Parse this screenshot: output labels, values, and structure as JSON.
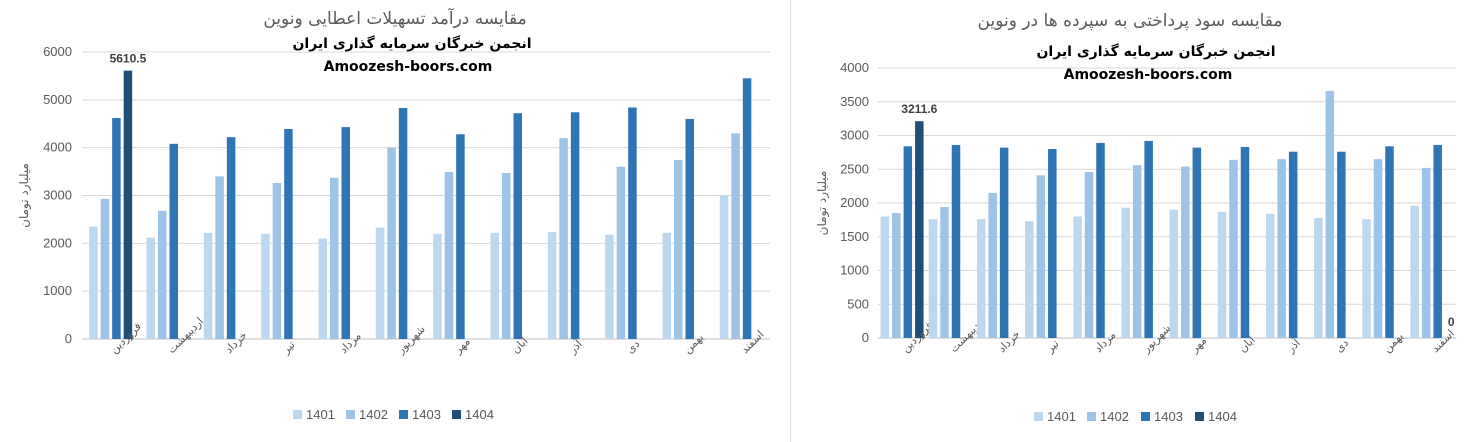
{
  "chart_data": [
    {
      "type": "bar",
      "title": "مقایسه درآمد تسهیلات اعطایی  ونوین",
      "watermark_line1": "انجمن خبرگان سرمایه گذاری ایران",
      "watermark_line2": "Amoozesh-boors.com",
      "ylabel": "میلیارد تومان",
      "ylim": [
        0,
        6000
      ],
      "yticks": [
        0,
        1000,
        2000,
        3000,
        4000,
        5000,
        6000
      ],
      "grid": true,
      "legend_position": "bottom",
      "categories": [
        "فروردین",
        "اردیبهشت",
        "خرداد",
        "تیر",
        "مرداد",
        "شهریور",
        "مهر",
        "آبان",
        "آذر",
        "دی",
        "بهمن",
        "اسفند"
      ],
      "series": [
        {
          "name": "1401",
          "color": "#bdd7ee",
          "values": [
            2350,
            2120,
            2220,
            2200,
            2100,
            2330,
            2200,
            2220,
            2240,
            2180,
            2220,
            3000
          ]
        },
        {
          "name": "1402",
          "color": "#9dc3e6",
          "values": [
            2930,
            2680,
            3400,
            3260,
            3370,
            4000,
            3490,
            3470,
            4200,
            3600,
            3740,
            4300
          ]
        },
        {
          "name": "1403",
          "color": "#2e75b6",
          "values": [
            4620,
            4080,
            4220,
            4390,
            4430,
            4830,
            4280,
            4720,
            4740,
            4840,
            4600,
            5450
          ]
        },
        {
          "name": "1404",
          "color": "#1f4e79",
          "values": [
            5610.5,
            null,
            null,
            null,
            null,
            null,
            null,
            null,
            null,
            null,
            null,
            null
          ]
        }
      ],
      "data_labels": [
        {
          "series": "1404",
          "category": "فروردین",
          "text": "5610.5"
        }
      ]
    },
    {
      "type": "bar",
      "title": "مقایسه سود پرداختی به سپرده ها در ونوین",
      "watermark_line1": "انجمن خبرگان سرمایه گذاری ایران",
      "watermark_line2": "Amoozesh-boors.com",
      "ylabel": "میلیارد تومان",
      "ylim": [
        0,
        4000
      ],
      "yticks": [
        0,
        500,
        1000,
        1500,
        2000,
        2500,
        3000,
        3500,
        4000
      ],
      "grid": true,
      "legend_position": "bottom",
      "categories": [
        "فروردین",
        "اردیبهشت",
        "خرداد",
        "تیر",
        "مرداد",
        "شهریور",
        "مهر",
        "آبان",
        "آذر",
        "دی",
        "بهمن",
        "اسفند"
      ],
      "series": [
        {
          "name": "1401",
          "color": "#bdd7ee",
          "values": [
            1800,
            1760,
            1760,
            1730,
            1800,
            1930,
            1900,
            1870,
            1840,
            1780,
            1760,
            1960
          ]
        },
        {
          "name": "1402",
          "color": "#9dc3e6",
          "values": [
            1850,
            1940,
            2150,
            2410,
            2460,
            2560,
            2540,
            2640,
            2650,
            3660,
            2650,
            2520
          ]
        },
        {
          "name": "1403",
          "color": "#2e75b6",
          "values": [
            2840,
            2860,
            2820,
            2800,
            2890,
            2920,
            2820,
            2830,
            2760,
            2760,
            2840,
            2860
          ]
        },
        {
          "name": "1404",
          "color": "#1f4e79",
          "values": [
            3211.6,
            null,
            null,
            null,
            null,
            null,
            null,
            null,
            null,
            null,
            null,
            0
          ]
        }
      ],
      "data_labels": [
        {
          "series": "1404",
          "category": "فروردین",
          "text": "3211.6"
        },
        {
          "series": "1404",
          "category": "اسفند",
          "text": "0"
        }
      ]
    }
  ]
}
